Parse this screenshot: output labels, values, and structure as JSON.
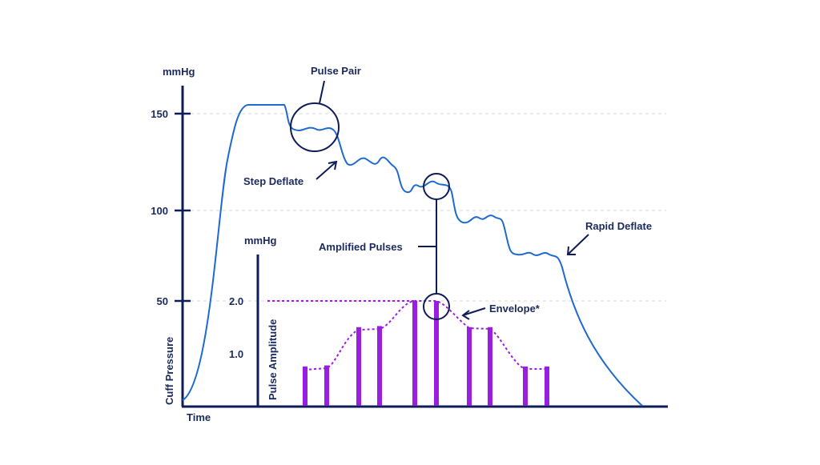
{
  "colors": {
    "axis": "#0e1c57",
    "pressure_curve": "#1e6ad0",
    "annotation": "#1b2a5c",
    "pulse_bars": "#9a1ee0",
    "grid": "#d6d9e0"
  },
  "axes": {
    "pressure_unit": "mmHg",
    "pressure_label": "Cuff Pressure",
    "time_label": "Time",
    "amplitude_unit": "mmHg",
    "amplitude_label": "Pulse Amplitude",
    "pressure_ticks": [
      "150",
      "100",
      "50"
    ],
    "amplitude_ticks": [
      "2.0",
      "1.0"
    ]
  },
  "annotations": {
    "pulse_pair": "Pulse Pair",
    "step_deflate": "Step Deflate",
    "amplified_pulses": "Amplified Pulses",
    "rapid_deflate": "Rapid Deflate",
    "envelope": "Envelope*"
  },
  "chart_data": {
    "type": "bar",
    "pulse_amplitudes": [
      0.75,
      0.77,
      1.5,
      1.52,
      2.0,
      2.0,
      1.5,
      1.5,
      0.75,
      0.75
    ],
    "amplitude_range": [
      0,
      2.0
    ],
    "pressure_range": [
      0,
      165
    ],
    "grid": true
  }
}
